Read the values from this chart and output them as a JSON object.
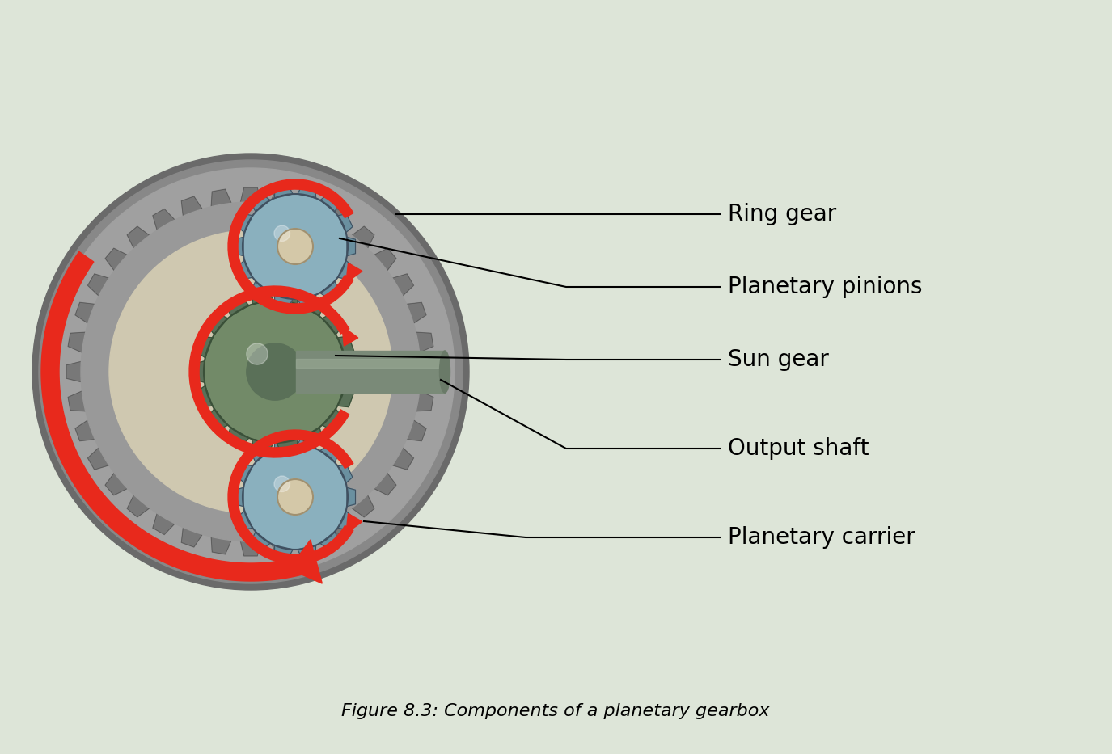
{
  "background_color": "#dde5d8",
  "title": "Figure 8.3: Components of a planetary gearbox",
  "title_fontsize": 16,
  "labels": {
    "ring_gear": "Ring gear",
    "planetary_pinions": "Planetary pinions",
    "sun_gear": "Sun gear",
    "output_shaft": "Output shaft",
    "planetary_carrier": "Planetary carrier"
  },
  "label_fontsize": 20,
  "colors": {
    "ring_outer": "#8a8a8a",
    "ring_mid": "#a0a0a0",
    "ring_inner": "#b0b0b0",
    "ring_gear_face": "#909090",
    "carrier_bg": "#d4cfc0",
    "pinion_body": "#9ab5c0",
    "pinion_tooth": "#7a9aaa",
    "sun_body": "#7a9070",
    "sun_tooth": "#6a8060",
    "shaft_body": "#7a8a78",
    "shaft_highlight": "#9aaa96",
    "arrow_red": "#e8291c",
    "line_color": "#000000",
    "tooth_dark": "#555555"
  }
}
